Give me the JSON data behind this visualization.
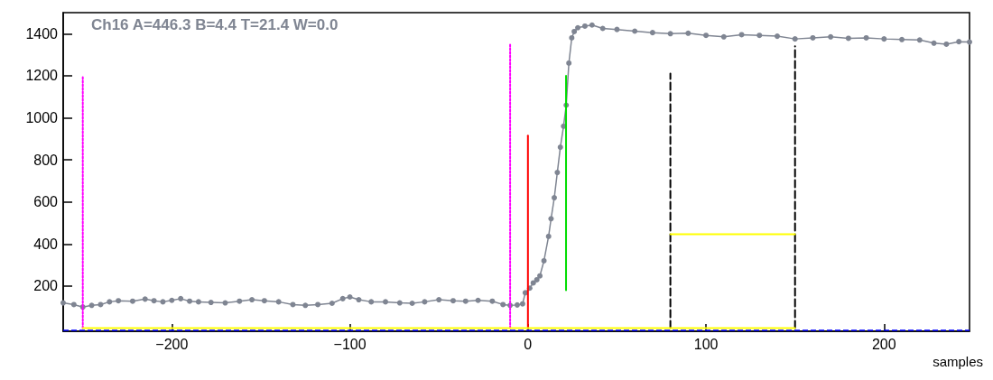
{
  "chart_data": {
    "type": "line",
    "title": "Ch16 A=446.3 B=4.4 T=21.4 W=0.0",
    "xlabel": "samples",
    "xlim": [
      -261,
      248
    ],
    "ylim": [
      -15,
      1500
    ],
    "xticks": [
      -200,
      -100,
      0,
      100,
      200
    ],
    "yticks": [
      200,
      400,
      600,
      800,
      1000,
      1200,
      1400
    ],
    "grid": false,
    "series": [
      {
        "color": "#7f8592",
        "marker": "circle",
        "x": [
          -261,
          -255,
          -250,
          -245,
          -240,
          -235,
          -230,
          -222,
          -215,
          -210,
          -205,
          -200,
          -195,
          -190,
          -185,
          -178,
          -170,
          -162,
          -155,
          -148,
          -140,
          -132,
          -125,
          -118,
          -110,
          -104,
          -100,
          -95,
          -88,
          -80,
          -72,
          -65,
          -58,
          -50,
          -42,
          -35,
          -28,
          -20,
          -14,
          -10,
          -6,
          -3,
          -1.5,
          1,
          3,
          5,
          6.7,
          9,
          11.6,
          13,
          14.8,
          16.5,
          18.2,
          20,
          21.5,
          23,
          24.6,
          26,
          28,
          32,
          36,
          42,
          50,
          60,
          70,
          80,
          90,
          100,
          110,
          120,
          130,
          140,
          150,
          160,
          170,
          180,
          190,
          200,
          210,
          220,
          228,
          235,
          242,
          248
        ],
        "values": [
          120,
          112,
          100,
          108,
          112,
          125,
          130,
          128,
          138,
          130,
          125,
          132,
          140,
          128,
          125,
          122,
          120,
          128,
          135,
          130,
          125,
          112,
          108,
          112,
          118,
          140,
          148,
          135,
          125,
          125,
          120,
          118,
          125,
          135,
          130,
          128,
          132,
          128,
          112,
          108,
          110,
          115,
          168,
          190,
          215,
          230,
          248,
          320,
          436,
          520,
          620,
          740,
          860,
          960,
          1060,
          1260,
          1380,
          1410,
          1428,
          1436,
          1441,
          1425,
          1420,
          1412,
          1405,
          1400,
          1402,
          1392,
          1385,
          1395,
          1392,
          1388,
          1375,
          1380,
          1385,
          1378,
          1380,
          1375,
          1372,
          1370,
          1355,
          1350,
          1362,
          1360
        ]
      },
      {
        "type": "line",
        "color": "#ff00ff",
        "line_style": "dotted",
        "marker": "none",
        "x": [
          -250,
          -250
        ],
        "values": [
          0,
          1200
        ]
      },
      {
        "type": "line",
        "color": "#ff00ff",
        "line_style": "dotted",
        "marker": "none",
        "x": [
          -10,
          -10
        ],
        "values": [
          0,
          1350
        ]
      },
      {
        "type": "line",
        "color": "#ff0000",
        "line_style": "solid",
        "marker": "none",
        "x": [
          0,
          0
        ],
        "values": [
          0,
          915
        ]
      },
      {
        "type": "line",
        "color": "#00dd00",
        "line_style": "solid",
        "marker": "none",
        "x": [
          21.4,
          21.4
        ],
        "values": [
          180,
          1200
        ]
      },
      {
        "type": "line",
        "color": "#000000",
        "line_style": "dashed",
        "marker": "none",
        "x": [
          80,
          80
        ],
        "values": [
          0,
          1210
        ]
      },
      {
        "type": "line",
        "color": "#000000",
        "line_style": "dashed",
        "marker": "none",
        "x": [
          150,
          150
        ],
        "values": [
          0,
          1340
        ]
      },
      {
        "type": "line",
        "color": "#ffff00",
        "line_style": "solid",
        "marker": "none",
        "x": [
          80,
          150
        ],
        "values": [
          446,
          446
        ]
      },
      {
        "type": "line",
        "color": "#ffff00",
        "line_style": "solid",
        "marker": "none",
        "x": [
          -250,
          150
        ],
        "values": [
          0,
          0
        ]
      }
    ],
    "ref_lines": [
      {
        "axis": "y",
        "value": -8,
        "color": "#0000ff",
        "line_style": "dashed"
      }
    ]
  }
}
